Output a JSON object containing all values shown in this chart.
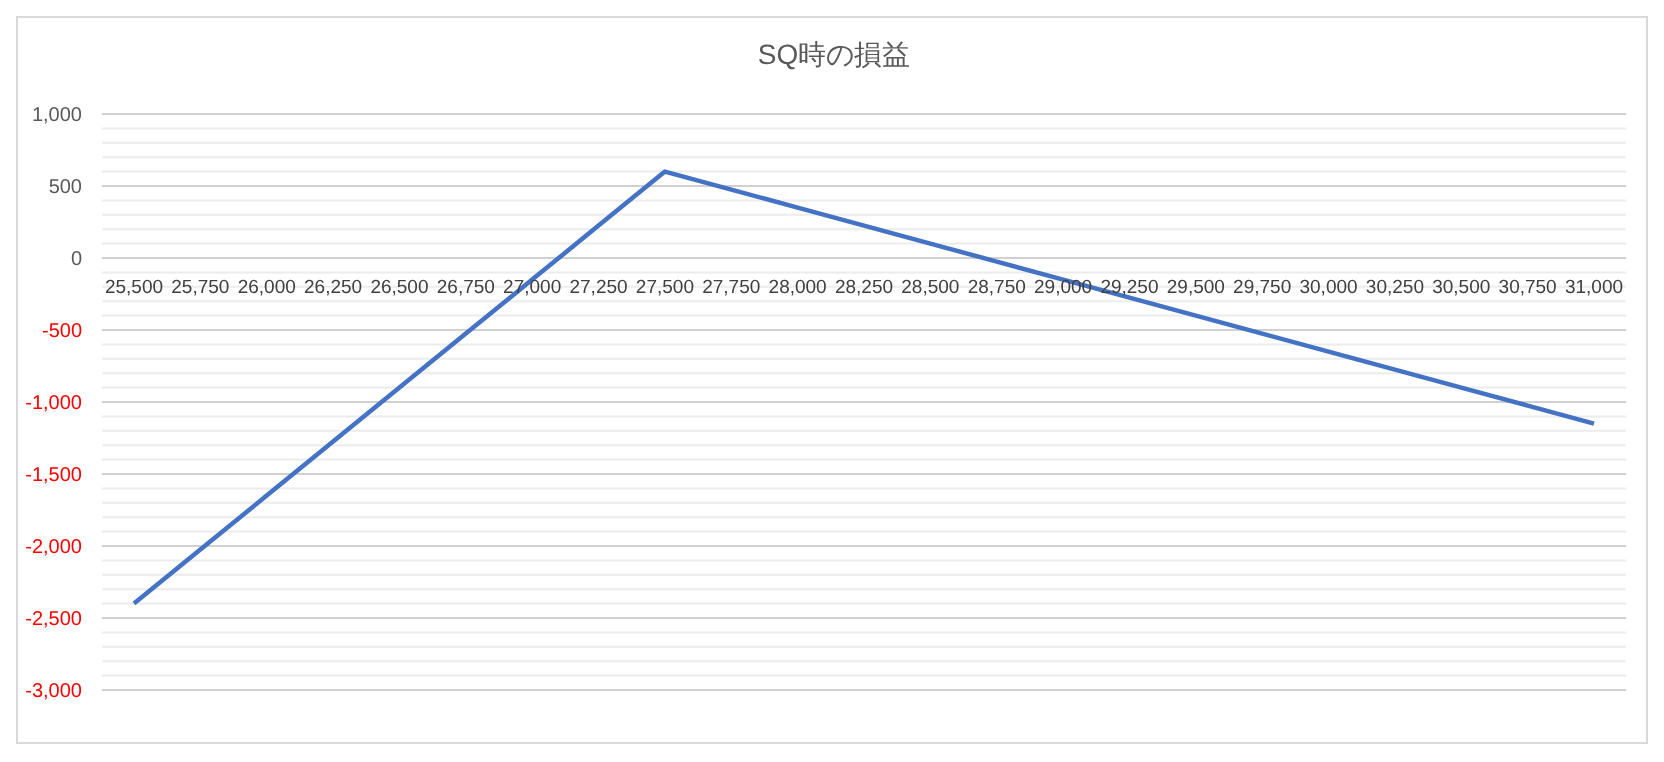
{
  "chart_data": {
    "type": "line",
    "title": "SQ時の損益",
    "categories": [
      "25,500",
      "25,750",
      "26,000",
      "26,250",
      "26,500",
      "26,750",
      "27,000",
      "27,250",
      "27,500",
      "27,750",
      "28,000",
      "28,250",
      "28,500",
      "28,750",
      "29,000",
      "29,250",
      "29,500",
      "29,750",
      "30,000",
      "30,250",
      "30,500",
      "30,750",
      "31,000"
    ],
    "series": [
      {
        "color": "#4472c4",
        "values": [
          -2400,
          -2025,
          -1650,
          -1275,
          -900,
          -525,
          -150,
          225,
          600,
          475,
          350,
          225,
          100,
          -25,
          -150,
          -275,
          -400,
          -525,
          -650,
          -775,
          -900,
          -1025,
          -1150
        ]
      }
    ],
    "ylim": [
      -3000,
      1000
    ],
    "yticks": [
      {
        "value": -3000,
        "label": "-3,000"
      },
      {
        "value": -2900,
        "label": null
      },
      {
        "value": -2800,
        "label": null
      },
      {
        "value": -2700,
        "label": null
      },
      {
        "value": -2600,
        "label": null
      },
      {
        "value": -2500,
        "label": "-2,500"
      },
      {
        "value": -2400,
        "label": null
      },
      {
        "value": -2300,
        "label": null
      },
      {
        "value": -2200,
        "label": null
      },
      {
        "value": -2100,
        "label": null
      },
      {
        "value": -2000,
        "label": "-2,000"
      },
      {
        "value": -1900,
        "label": null
      },
      {
        "value": -1800,
        "label": null
      },
      {
        "value": -1700,
        "label": null
      },
      {
        "value": -1600,
        "label": null
      },
      {
        "value": -1500,
        "label": "-1,500"
      },
      {
        "value": -1400,
        "label": null
      },
      {
        "value": -1300,
        "label": null
      },
      {
        "value": -1200,
        "label": null
      },
      {
        "value": -1100,
        "label": null
      },
      {
        "value": -1000,
        "label": "-1,000"
      },
      {
        "value": -900,
        "label": null
      },
      {
        "value": -800,
        "label": null
      },
      {
        "value": -700,
        "label": null
      },
      {
        "value": -600,
        "label": null
      },
      {
        "value": -500,
        "label": "-500"
      },
      {
        "value": -400,
        "label": null
      },
      {
        "value": -300,
        "label": null
      },
      {
        "value": -200,
        "label": null
      },
      {
        "value": -100,
        "label": null
      },
      0,
      {
        "value": 100,
        "label": null
      },
      {
        "value": 200,
        "label": null
      },
      {
        "value": 300,
        "label": null
      },
      {
        "value": 400,
        "label": null
      },
      {
        "value": 500,
        "label": "500"
      },
      {
        "value": 600,
        "label": null
      },
      {
        "value": 700,
        "label": null
      },
      {
        "value": 800,
        "label": null
      },
      {
        "value": 900,
        "label": null
      },
      {
        "value": 1000,
        "label": "1,000"
      }
    ],
    "grid": "y",
    "legend": false,
    "marker": "none",
    "line_style": "solid"
  }
}
